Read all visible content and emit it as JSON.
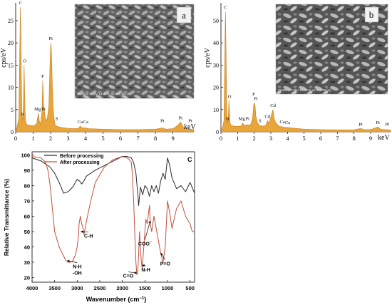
{
  "panel_a": {
    "label": "a",
    "ylabel": "cps/eV",
    "xlabel": "keV",
    "sem_caption": "SU8010 5.0kV 13.4mm x2.00k SE(U)",
    "chart_data": {
      "type": "area",
      "xlim": [
        0,
        10.2
      ],
      "ylim": [
        0,
        29
      ],
      "xticks": [
        0,
        1,
        2,
        3,
        4,
        5,
        6,
        7,
        8,
        9
      ],
      "yticks": [
        0,
        5,
        10,
        15,
        20,
        25
      ],
      "x": [
        0,
        0.1,
        0.18,
        0.27,
        0.3,
        0.35,
        0.4,
        0.45,
        0.48,
        0.52,
        0.55,
        0.6,
        0.7,
        0.8,
        0.9,
        1.0,
        1.1,
        1.2,
        1.25,
        1.3,
        1.35,
        1.4,
        1.45,
        1.5,
        1.55,
        1.6,
        1.7,
        1.8,
        1.9,
        1.97,
        2.01,
        2.05,
        2.1,
        2.15,
        2.2,
        2.25,
        2.3,
        2.4,
        2.6,
        2.8,
        3.0,
        3.3,
        3.6,
        3.69,
        3.8,
        4.01,
        4.2,
        5.0,
        6.0,
        7.0,
        8.0,
        8.4,
        8.6,
        9.0,
        9.3,
        9.44,
        9.6,
        9.8,
        10.0,
        10.2
      ],
      "y": [
        0,
        1.5,
        3,
        28,
        20,
        4,
        2.5,
        7,
        15,
        8,
        3,
        1.8,
        1.5,
        1.5,
        1.4,
        1.4,
        1.5,
        1.8,
        3,
        4.2,
        2.5,
        1.8,
        2.5,
        4.5,
        11.5,
        6,
        3,
        2.6,
        6,
        16,
        20,
        18,
        10,
        5,
        3,
        1.6,
        1.4,
        1.2,
        1.0,
        0.9,
        0.8,
        0.7,
        0.8,
        1.3,
        0.9,
        0.9,
        0.7,
        0.6,
        0.5,
        0.5,
        0.6,
        0.9,
        0.6,
        0.7,
        1.5,
        2.2,
        1.0,
        0.6,
        0.6,
        0.5
      ],
      "annotations": [
        {
          "label": "C",
          "x": 0.27,
          "y": 28
        },
        {
          "label": "O",
          "x": 0.52,
          "y": 15
        },
        {
          "label": "N",
          "x": 0.39,
          "y": 3
        },
        {
          "label": "Mg",
          "x": 1.25,
          "y": 4.2
        },
        {
          "label": "Pt",
          "x": 1.6,
          "y": 4.2
        },
        {
          "label": "P",
          "x": 1.55,
          "y": 11.5
        },
        {
          "label": "Pt",
          "x": 2.01,
          "y": 20
        },
        {
          "label": "S",
          "x": 2.35,
          "y": 2
        },
        {
          "label": "Ca",
          "x": 3.69,
          "y": 1.3
        },
        {
          "label": "Ca",
          "x": 4.01,
          "y": 1.3
        },
        {
          "label": "Pt",
          "x": 8.4,
          "y": 1.5
        },
        {
          "label": "Pt",
          "x": 9.44,
          "y": 2.2
        },
        {
          "label": "Pt",
          "x": 10.0,
          "y": 1.5
        }
      ]
    }
  },
  "panel_b": {
    "label": "b",
    "ylabel": "cps/eV",
    "xlabel": "keV",
    "sem_caption": "SU8010 5.0kV 13.4mm x2.00k SE(U)",
    "chart_data": {
      "type": "area",
      "xlim": [
        0,
        10.2
      ],
      "ylim": [
        0,
        58
      ],
      "xticks": [
        0,
        1,
        2,
        3,
        4,
        5,
        6,
        7,
        8,
        9
      ],
      "yticks": [
        0,
        10,
        20,
        30,
        40,
        50
      ],
      "x": [
        0,
        0.1,
        0.18,
        0.27,
        0.3,
        0.35,
        0.4,
        0.45,
        0.48,
        0.52,
        0.55,
        0.6,
        0.8,
        1.0,
        1.2,
        1.25,
        1.3,
        1.4,
        1.5,
        1.6,
        1.7,
        1.8,
        1.9,
        1.97,
        2.01,
        2.05,
        2.1,
        2.2,
        2.3,
        2.5,
        2.7,
        2.8,
        2.9,
        3.05,
        3.13,
        3.2,
        3.3,
        3.5,
        3.69,
        3.8,
        4.01,
        4.2,
        5.0,
        6.0,
        7.0,
        8.0,
        8.4,
        8.6,
        9.0,
        9.3,
        9.44,
        9.6,
        9.8,
        10.0,
        10.2
      ],
      "y": [
        0,
        2,
        5,
        54,
        40,
        8,
        4,
        8,
        14,
        9,
        4,
        3,
        2.5,
        2.5,
        2.5,
        3,
        4,
        3,
        3,
        3.2,
        3,
        3.5,
        6,
        12,
        13,
        12,
        7,
        4,
        3,
        2.5,
        3,
        5,
        4,
        8,
        10,
        6,
        4,
        2.5,
        2.2,
        2,
        2,
        1.8,
        1.2,
        1.0,
        0.9,
        0.9,
        1.5,
        1.0,
        1.0,
        1.8,
        2.2,
        1.2,
        1.0,
        1.0,
        0.8
      ],
      "annotations": [
        {
          "label": "C",
          "x": 0.27,
          "y": 54
        },
        {
          "label": "O",
          "x": 0.52,
          "y": 14
        },
        {
          "label": "N",
          "x": 0.39,
          "y": 4
        },
        {
          "label": "Mg",
          "x": 1.25,
          "y": 4
        },
        {
          "label": "Pt",
          "x": 1.6,
          "y": 4
        },
        {
          "label": "P",
          "x": 1.97,
          "y": 15
        },
        {
          "label": "Pt",
          "x": 2.1,
          "y": 13
        },
        {
          "label": "S",
          "x": 2.35,
          "y": 3
        },
        {
          "label": "Cd",
          "x": 2.8,
          "y": 5
        },
        {
          "label": "Cd",
          "x": 3.13,
          "y": 10
        },
        {
          "label": "Ca",
          "x": 3.69,
          "y": 2.5
        },
        {
          "label": "Ca",
          "x": 4.01,
          "y": 2.2
        },
        {
          "label": "Pt",
          "x": 8.4,
          "y": 1.5
        },
        {
          "label": "Pt",
          "x": 9.44,
          "y": 2.2
        },
        {
          "label": "Pt",
          "x": 10.0,
          "y": 1.5
        }
      ]
    }
  },
  "panel_c": {
    "label": "C",
    "ylabel": "Relative Transmittance (%)",
    "xlabel": "Wavenumber (cm",
    "xlabel_sup": "−1",
    "xlabel_end": ")",
    "chart_data": {
      "type": "line",
      "xlim": [
        4000,
        400
      ],
      "ylim": [
        17,
        102
      ],
      "xticks": [
        4000,
        3500,
        3000,
        2500,
        2000,
        1500,
        1000,
        500
      ],
      "yticks": [
        20,
        30,
        40,
        50,
        60,
        70,
        80,
        90,
        100
      ],
      "legend": "top-left",
      "series": [
        {
          "name": "Before processing",
          "color": "#2a2a2a",
          "x": [
            4000,
            3800,
            3600,
            3500,
            3400,
            3300,
            3200,
            3100,
            3000,
            2950,
            2900,
            2850,
            2800,
            2600,
            2400,
            2200,
            2000,
            1900,
            1800,
            1750,
            1700,
            1650,
            1640,
            1600,
            1550,
            1500,
            1450,
            1400,
            1350,
            1300,
            1250,
            1200,
            1150,
            1100,
            1050,
            1000,
            950,
            900,
            800,
            700,
            600,
            500,
            400
          ],
          "y": [
            98,
            96,
            92,
            88,
            82,
            75,
            76,
            79,
            84,
            83,
            81,
            83,
            86,
            90,
            93,
            96,
            99,
            99,
            98,
            95,
            88,
            72,
            67,
            79,
            74,
            80,
            78,
            73,
            80,
            76,
            80,
            75,
            83,
            88,
            84,
            98,
            93,
            85,
            78,
            80,
            76,
            82,
            75
          ]
        },
        {
          "name": "After processing",
          "color": "#c0503a",
          "x": [
            4000,
            3800,
            3700,
            3650,
            3600,
            3550,
            3500,
            3400,
            3300,
            3250,
            3200,
            3150,
            3100,
            3050,
            3000,
            2970,
            2960,
            2930,
            2920,
            2900,
            2870,
            2860,
            2850,
            2800,
            2700,
            2600,
            2400,
            2200,
            2000,
            1900,
            1850,
            1800,
            1780,
            1750,
            1720,
            1700,
            1680,
            1660,
            1640,
            1620,
            1600,
            1580,
            1560,
            1540,
            1500,
            1480,
            1450,
            1400,
            1380,
            1350,
            1300,
            1250,
            1200,
            1150,
            1100,
            1050,
            1000,
            950,
            900,
            800,
            700,
            600,
            500,
            450,
            400
          ],
          "y": [
            99,
            98,
            95,
            90,
            80,
            65,
            50,
            40,
            34,
            31,
            30,
            30,
            31,
            34,
            40,
            48,
            55,
            60,
            58,
            55,
            52,
            50,
            48,
            56,
            70,
            82,
            92,
            97,
            99,
            98,
            97,
            95,
            88,
            70,
            45,
            30,
            22,
            23,
            35,
            50,
            40,
            30,
            26,
            34,
            50,
            58,
            55,
            67,
            55,
            50,
            60,
            52,
            44,
            36,
            30,
            40,
            70,
            62,
            52,
            65,
            70,
            60,
            55,
            50,
            50
          ]
        }
      ],
      "annotations": [
        {
          "label": "N-H",
          "label2": "-OH",
          "text_x": 3000,
          "text_y": 26,
          "arrow_to_x": 3220,
          "arrow_to_y": 31
        },
        {
          "label": "C-H",
          "text_x": 2750,
          "text_y": 46,
          "arrow_to_x": 2920,
          "arrow_to_y": 50
        },
        {
          "label": "C=O",
          "text_x": 1870,
          "text_y": 20,
          "arrow_to_x": 1680,
          "arrow_to_y": 23
        },
        {
          "label": "N-H",
          "text_x": 1480,
          "text_y": 24,
          "arrow_to_x": 1560,
          "arrow_to_y": 28
        },
        {
          "label": "COO",
          "label_sup": "−",
          "text_x": 1500,
          "text_y": 41,
          "arrow_to_x": 1380,
          "arrow_to_y": 57
        },
        {
          "label": "P=O",
          "text_x": 1050,
          "text_y": 28,
          "arrow_to_x": 1150,
          "arrow_to_y": 36
        }
      ]
    }
  }
}
